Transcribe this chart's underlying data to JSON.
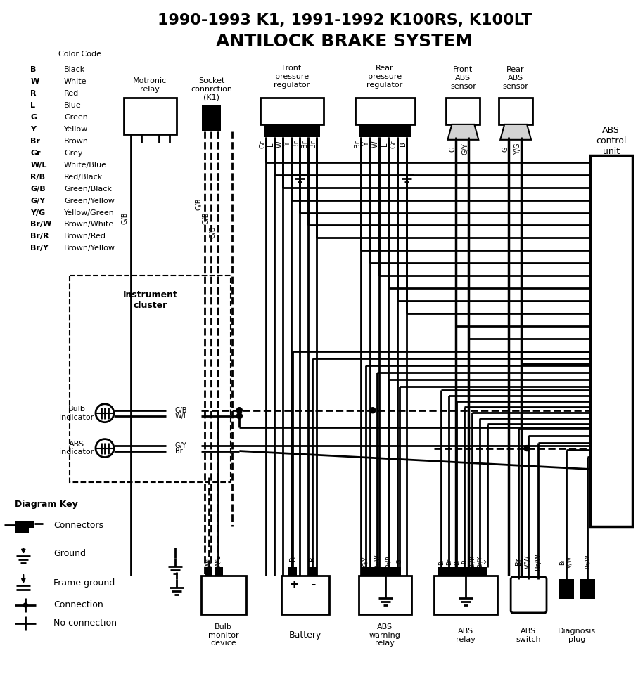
{
  "title_line1": "1990-1993 K1, 1991-1992 K100RS, K100LT",
  "title_line2": "ANTILOCK BRAKE SYSTEM",
  "color_code_title": "Color Code",
  "color_codes": [
    [
      "B",
      "Black"
    ],
    [
      "W",
      "White"
    ],
    [
      "R",
      "Red"
    ],
    [
      "L",
      "Blue"
    ],
    [
      "G",
      "Green"
    ],
    [
      "Y",
      "Yellow"
    ],
    [
      "Br",
      "Brown"
    ],
    [
      "Gr",
      "Grey"
    ],
    [
      "W/L",
      "White/Blue"
    ],
    [
      "R/B",
      "Red/Black"
    ],
    [
      "G/B",
      "Green/Black"
    ],
    [
      "G/Y",
      "Green/Yellow"
    ],
    [
      "Y/G",
      "Yellow/Green"
    ],
    [
      "Br/W",
      "Brown/White"
    ],
    [
      "Br/R",
      "Brown/Red"
    ],
    [
      "Br/Y",
      "Brown/Yellow"
    ]
  ],
  "motronic_label": "Motronic\nrelay",
  "socket_label": "Socket\nconnrction\n(K1)",
  "front_pressure_label": "Front\npressure\nregulator",
  "rear_pressure_label": "Rear\npressure\nregulator",
  "front_abs_label": "Front\nABS\nsensor",
  "rear_abs_label": "Rear\nABS\nsensor",
  "abs_cu_label": "ABS\ncontrol\nunit",
  "instrument_cluster_label": "Instrument\ncluster",
  "bulb_indicator_label": "Bulb\nindicator",
  "abs_indicator_label": "ABS\nindicator",
  "bulb_monitor_label": "Bulb\nmonitor\ndevice",
  "battery_label": "Battery",
  "abs_warning_label": "ABS\nwarning\nrelay",
  "abs_relay_label": "ABS\nrelay",
  "abs_switch_label": "ABS\nswitch",
  "diagnosis_label": "Diagnosis\nplug",
  "diagram_key_label": "Diagram Key",
  "key_connectors": "Connectors",
  "key_ground": "Ground",
  "key_frame_ground": "Frame ground",
  "key_connection": "Connection",
  "key_no_connection": "No connection",
  "bg": "#ffffff"
}
